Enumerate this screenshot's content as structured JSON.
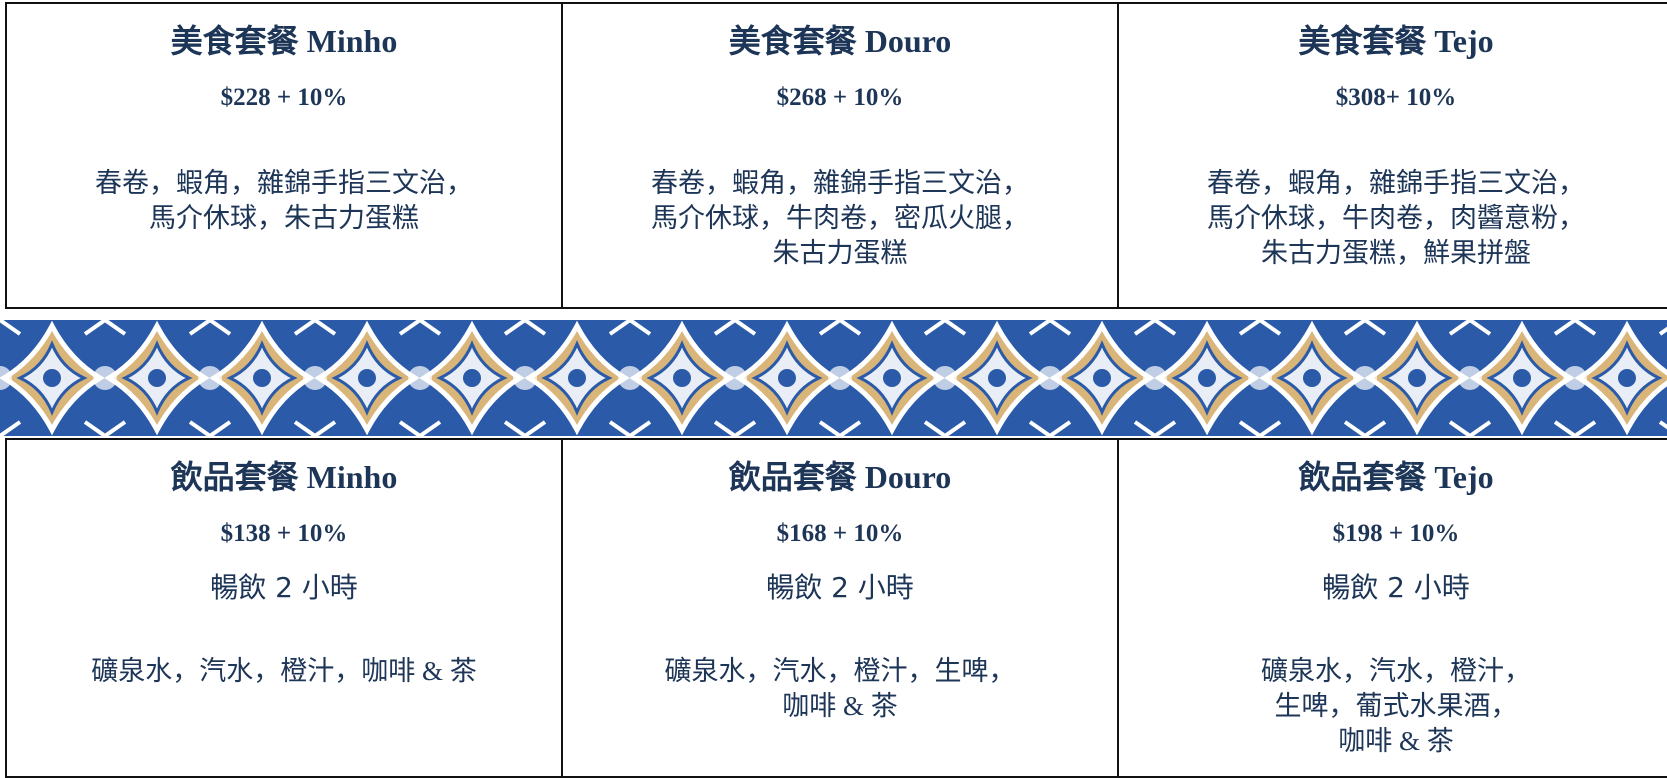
{
  "meals": [
    {
      "title": "美食套餐 Minho",
      "price": "$228 + 10%",
      "lines": [
        "春卷，蝦角，雜錦手指三文治，",
        "馬介休球，朱古力蛋糕"
      ]
    },
    {
      "title": "美食套餐 Douro",
      "price": "$268 + 10%",
      "lines": [
        "春卷，蝦角，雜錦手指三文治，",
        "馬介休球，牛肉卷，密瓜火腿，",
        "朱古力蛋糕"
      ]
    },
    {
      "title": "美食套餐 Tejo",
      "price": "$308+ 10%",
      "lines": [
        "春卷，蝦角，雜錦手指三文治，",
        "馬介休球，牛肉卷，肉醬意粉，",
        "朱古力蛋糕，鮮果拼盤"
      ]
    }
  ],
  "drinks": [
    {
      "title": "飲品套餐 Minho",
      "price": "$138 + 10%",
      "duration": "暢飲 2 小時",
      "lines": [
        "礦泉水，汽水，橙汁，咖啡 & 茶"
      ]
    },
    {
      "title": "飲品套餐 Douro",
      "price": "$168 + 10%",
      "duration": "暢飲 2 小時",
      "lines": [
        "礦泉水，汽水，橙汁，生啤，",
        "咖啡 & 茶"
      ]
    },
    {
      "title": "飲品套餐 Tejo",
      "price": "$198 + 10%",
      "duration": "暢飲 2 小時",
      "lines": [
        "礦泉水，汽水，橙汁，",
        "生啤，葡式水果酒，",
        "咖啡 & 茶"
      ]
    }
  ]
}
